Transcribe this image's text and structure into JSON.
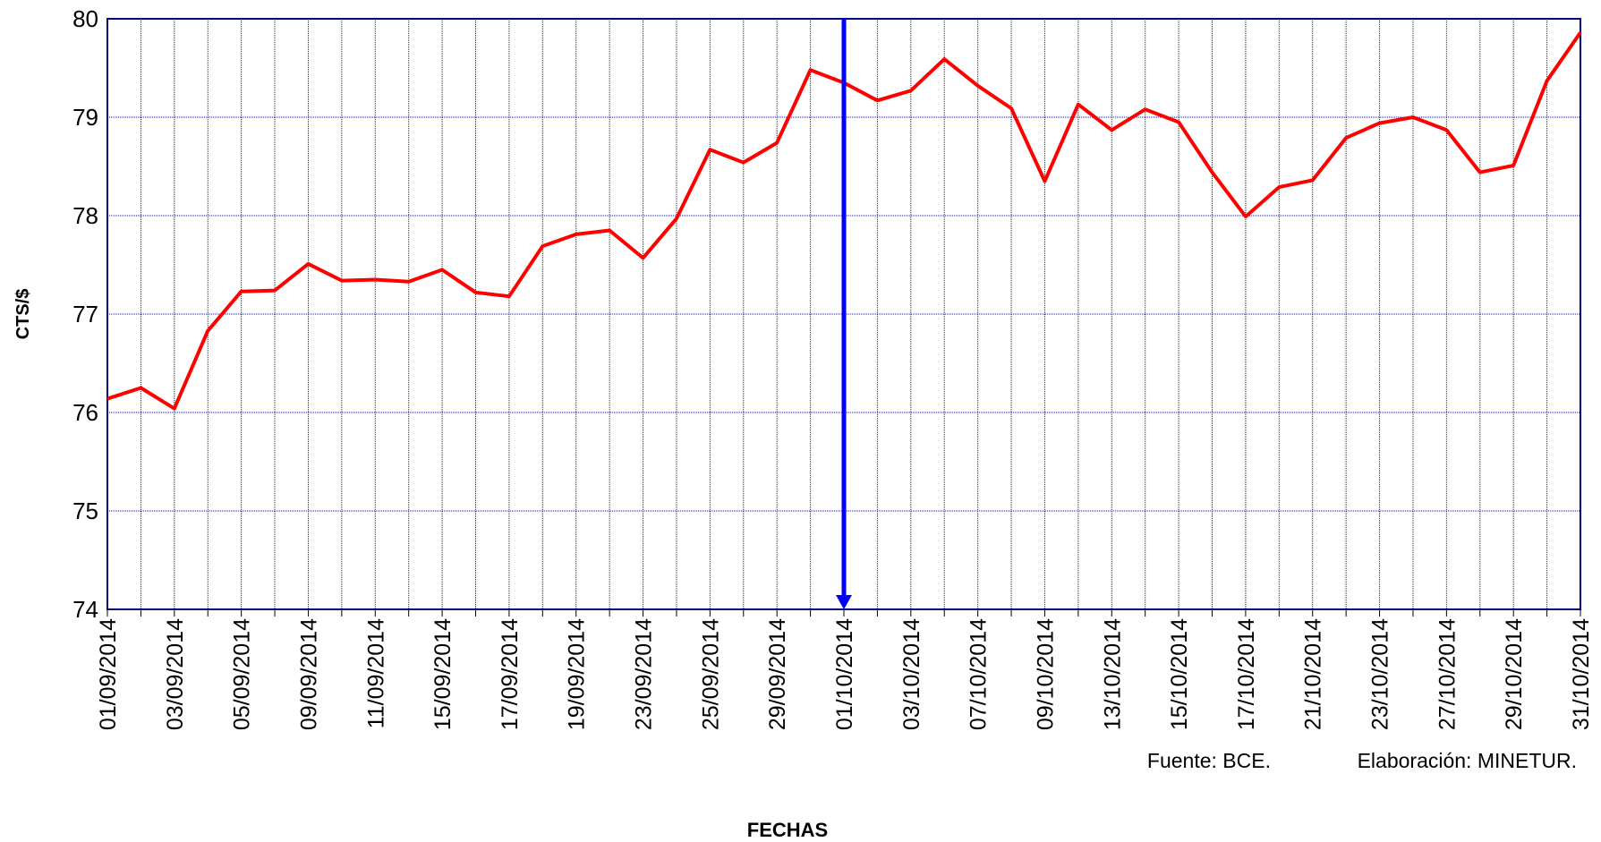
{
  "chart_data": {
    "type": "line",
    "x_label": "FECHAS",
    "y_label": "CTS/$",
    "annotations": [
      "Fuente: BCE.",
      "Elaboración: MINETUR."
    ],
    "categories": [
      "01/09/2014",
      null,
      "03/09/2014",
      null,
      "05/09/2014",
      null,
      "09/09/2014",
      null,
      "11/09/2014",
      null,
      "15/09/2014",
      null,
      "17/09/2014",
      null,
      "19/09/2014",
      null,
      "23/09/2014",
      null,
      "25/09/2014",
      null,
      "29/09/2014",
      null,
      "01/10/2014",
      null,
      "03/10/2014",
      null,
      "07/10/2014",
      null,
      "09/10/2014",
      null,
      "13/10/2014",
      null,
      "15/10/2014",
      null,
      "17/10/2014",
      null,
      "21/10/2014",
      null,
      "23/10/2014",
      null,
      "27/10/2014",
      null,
      "29/10/2014",
      null,
      "31/10/2014"
    ],
    "series": [
      {
        "name": "CTS/$",
        "color": "#ff0000",
        "values": [
          76.14,
          76.25,
          76.04,
          76.83,
          77.23,
          77.24,
          77.51,
          77.34,
          77.35,
          77.33,
          77.45,
          77.22,
          77.18,
          77.69,
          77.81,
          77.85,
          77.57,
          77.97,
          78.67,
          78.54,
          78.74,
          79.48,
          79.35,
          79.17,
          79.27,
          79.59,
          79.32,
          79.09,
          78.35,
          79.13,
          78.87,
          79.08,
          78.95,
          78.44,
          77.99,
          78.29,
          78.36,
          78.79,
          78.94,
          79.0,
          78.87,
          78.44,
          78.51,
          79.37,
          79.86
        ]
      }
    ],
    "ylim": [
      74,
      80
    ],
    "yticks": [
      74,
      75,
      76,
      77,
      78,
      79,
      80
    ],
    "grid": true
  }
}
